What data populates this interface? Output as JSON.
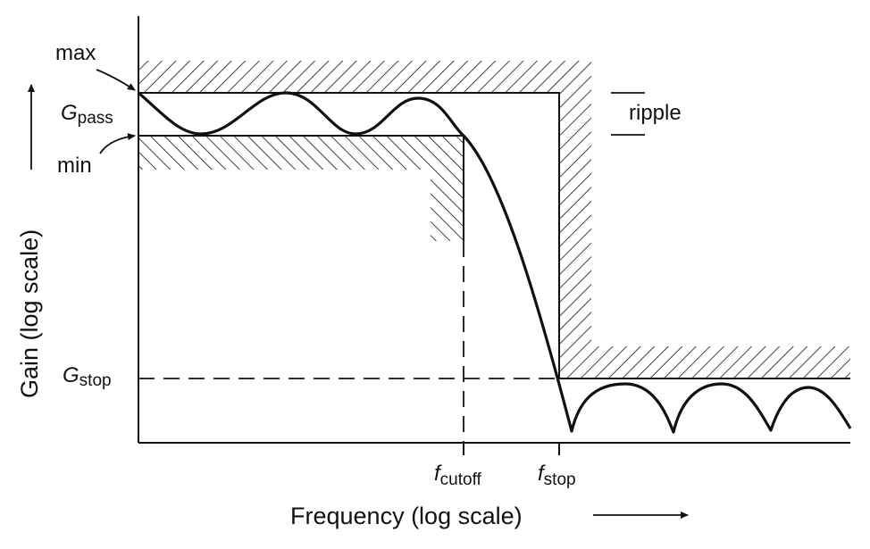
{
  "diagram": {
    "x_axis_label": "Frequency (log scale)",
    "y_axis_label": "Gain (log scale)",
    "labels": {
      "max": "max",
      "min": "min",
      "ripple": "ripple",
      "g_pass_main": "G",
      "g_pass_sub": "pass",
      "g_stop_main": "G",
      "g_stop_sub": "stop",
      "f_cutoff_main": "f",
      "f_cutoff_sub": "cutoff",
      "f_stop_main": "f",
      "f_stop_sub": "stop"
    },
    "colors": {
      "ink": "#111111",
      "background": "#ffffff"
    }
  }
}
